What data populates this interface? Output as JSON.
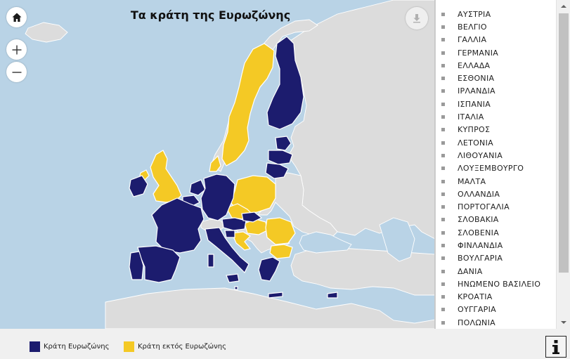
{
  "map": {
    "title": "Τα κράτη της Ευρωζώνης",
    "colors": {
      "eurozone": "#1c1c6e",
      "non_eurozone": "#f4c925",
      "other_land": "#dcdcdc",
      "sea": "#b9d3e6"
    },
    "controls": {
      "home_icon": "home-icon",
      "zoom_in_icon": "plus-icon",
      "zoom_out_icon": "minus-icon",
      "download_icon": "download-icon"
    }
  },
  "country_list": {
    "items": [
      "ΑΥΣΤΡΙΑ",
      "ΒΕΛΓΙΟ",
      "ΓΑΛΛΙΑ",
      "ΓΕΡΜΑΝΙΑ",
      "ΕΛΛΑΔΑ",
      "ΕΣΘΟΝΙΑ",
      "ΙΡΛΑΝΔΙΑ",
      "ΙΣΠΑΝΙΑ",
      "ΙΤΑΛΙΑ",
      "ΚΥΠΡΟΣ",
      "ΛΕΤΟΝΙΑ",
      "ΛΙΘΟΥΑΝΙΑ",
      "ΛΟΥΞΕΜΒΟΥΡΓΟ",
      "ΜΑΛΤΑ",
      "ΟΛΛΑΝΔΙΑ",
      "ΠΟΡΤΟΓΑΛΙΑ",
      "ΣΛΟΒΑΚΙΑ",
      "ΣΛΟΒΕΝΙΑ",
      "ΦΙΝΛΑΝΔΙΑ",
      "ΒΟΥΛΓΑΡΙΑ",
      "ΔΑΝΙΑ",
      "ΗΝΩΜΕΝΟ ΒΑΣΙΛΕΙΟ",
      "ΚΡΟΑΤΙΑ",
      "ΟΥΓΓΑΡΙΑ",
      "ΠΟΛΩΝΙΑ"
    ]
  },
  "legend": {
    "eurozone_label": "Κράτη Ευρωζώνης",
    "non_eurozone_label": "Κράτη εκτός Ευρωζώνης"
  },
  "info_icon": "info-icon"
}
